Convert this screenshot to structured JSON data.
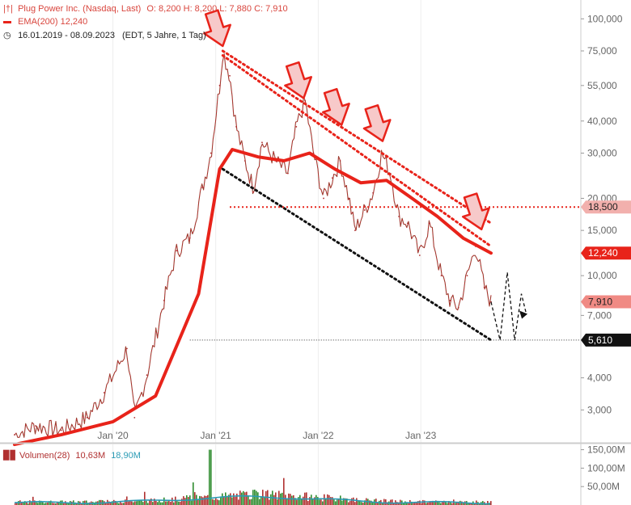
{
  "legend": {
    "title": "Plug Power Inc. (Nasdaq, Last)",
    "ohlc": "O: 8,200  H: 8,200  L: 7,880  C: 7,910",
    "ema": "EMA(200)  12,240",
    "range": "16.01.2019 - 08.09.2023",
    "range_note": "(EDT, 5 Jahre, 1 Tag)"
  },
  "volume_legend": {
    "label": "Volumen(28)",
    "value1": "10,63M",
    "value2": "18,90M"
  },
  "colors": {
    "price": "#b03030",
    "up": "#2e8b2e",
    "ema": "#e8231a",
    "trend_top": "#e8231a",
    "trend_bottom": "#111111",
    "arrow_fill": "#f7c9c9",
    "volume": "#b03030",
    "volume_avg": "#2a9bb5"
  },
  "chart_data": {
    "type": "line",
    "title": "Plug Power Inc. (Nasdaq, Last)",
    "y_scale": "log",
    "ylim": [
      2.3,
      115
    ],
    "x_ticks": [
      "Jan '20",
      "Jan '21",
      "Jan '22",
      "Jan '23"
    ],
    "y_ticks": [
      "100,000",
      "75,000",
      "55,000",
      "40,000",
      "30,000",
      "20,000",
      "15,000",
      "10,000",
      "7,000",
      "4,000",
      "3,000"
    ],
    "y_tick_values": [
      100,
      75,
      55,
      40,
      30,
      20,
      15,
      10,
      7,
      4,
      3
    ],
    "series": [
      {
        "name": "Plug Power",
        "x": [
          "2019-01-16",
          "2019-04-01",
          "2019-07-01",
          "2019-10-01",
          "2019-12-01",
          "2020-02-20",
          "2020-03-18",
          "2020-05-01",
          "2020-07-01",
          "2020-08-15",
          "2020-10-01",
          "2020-11-15",
          "2020-12-15",
          "2021-01-15",
          "2021-01-26",
          "2021-02-20",
          "2021-03-15",
          "2021-04-15",
          "2021-05-15",
          "2021-06-15",
          "2021-08-01",
          "2021-09-15",
          "2021-10-15",
          "2021-11-15",
          "2021-12-15",
          "2022-01-20",
          "2022-02-20",
          "2022-03-20",
          "2022-04-20",
          "2022-05-12",
          "2022-06-15",
          "2022-07-15",
          "2022-08-15",
          "2022-09-15",
          "2022-10-15",
          "2022-11-15",
          "2022-12-28",
          "2023-02-01",
          "2023-03-15",
          "2023-04-15",
          "2023-05-15",
          "2023-06-15",
          "2023-07-15",
          "2023-08-15",
          "2023-09-08"
        ],
        "values": [
          2.4,
          2.6,
          2.5,
          2.8,
          3.5,
          5.2,
          2.8,
          4.1,
          8.0,
          12.5,
          14.0,
          22.0,
          30.0,
          55.0,
          75.0,
          60.0,
          38.0,
          28.0,
          22.0,
          33.0,
          28.0,
          25.0,
          38.0,
          48.0,
          30.0,
          20.0,
          24.0,
          28.0,
          20.0,
          15.0,
          18.0,
          21.0,
          30.0,
          25.0,
          17.0,
          16.0,
          12.0,
          16.0,
          10.0,
          8.0,
          7.5,
          10.0,
          13.0,
          9.0,
          7.9
        ]
      },
      {
        "name": "EMA(200)",
        "x": [
          "2019-01-16",
          "2019-07-01",
          "2020-01-01",
          "2020-06-01",
          "2020-11-01",
          "2021-01-15",
          "2021-03-01",
          "2021-06-01",
          "2021-09-01",
          "2021-12-01",
          "2022-03-01",
          "2022-06-01",
          "2022-09-01",
          "2022-12-01",
          "2023-03-01",
          "2023-06-01",
          "2023-09-08"
        ],
        "values": [
          2.2,
          2.4,
          2.7,
          3.4,
          8.5,
          26.0,
          31.0,
          29.0,
          28.0,
          30.0,
          26.0,
          23.0,
          23.5,
          20.0,
          17.0,
          14.0,
          12.24
        ]
      }
    ],
    "annotations": {
      "hlines": [
        {
          "value": 18.5,
          "label": "18,500"
        },
        {
          "value": 5.61,
          "label": "5,610"
        }
      ],
      "price_labels": [
        {
          "value": 12.24,
          "label": "12,240"
        },
        {
          "value": 7.91,
          "label": "7,910"
        }
      ]
    },
    "volume": {
      "ylim": [
        0,
        160
      ],
      "y_ticks": [
        "150,00M",
        "100,00M",
        "50,00M"
      ],
      "y_tick_values": [
        150,
        100,
        50
      ],
      "label": "Volumen(28)"
    }
  }
}
